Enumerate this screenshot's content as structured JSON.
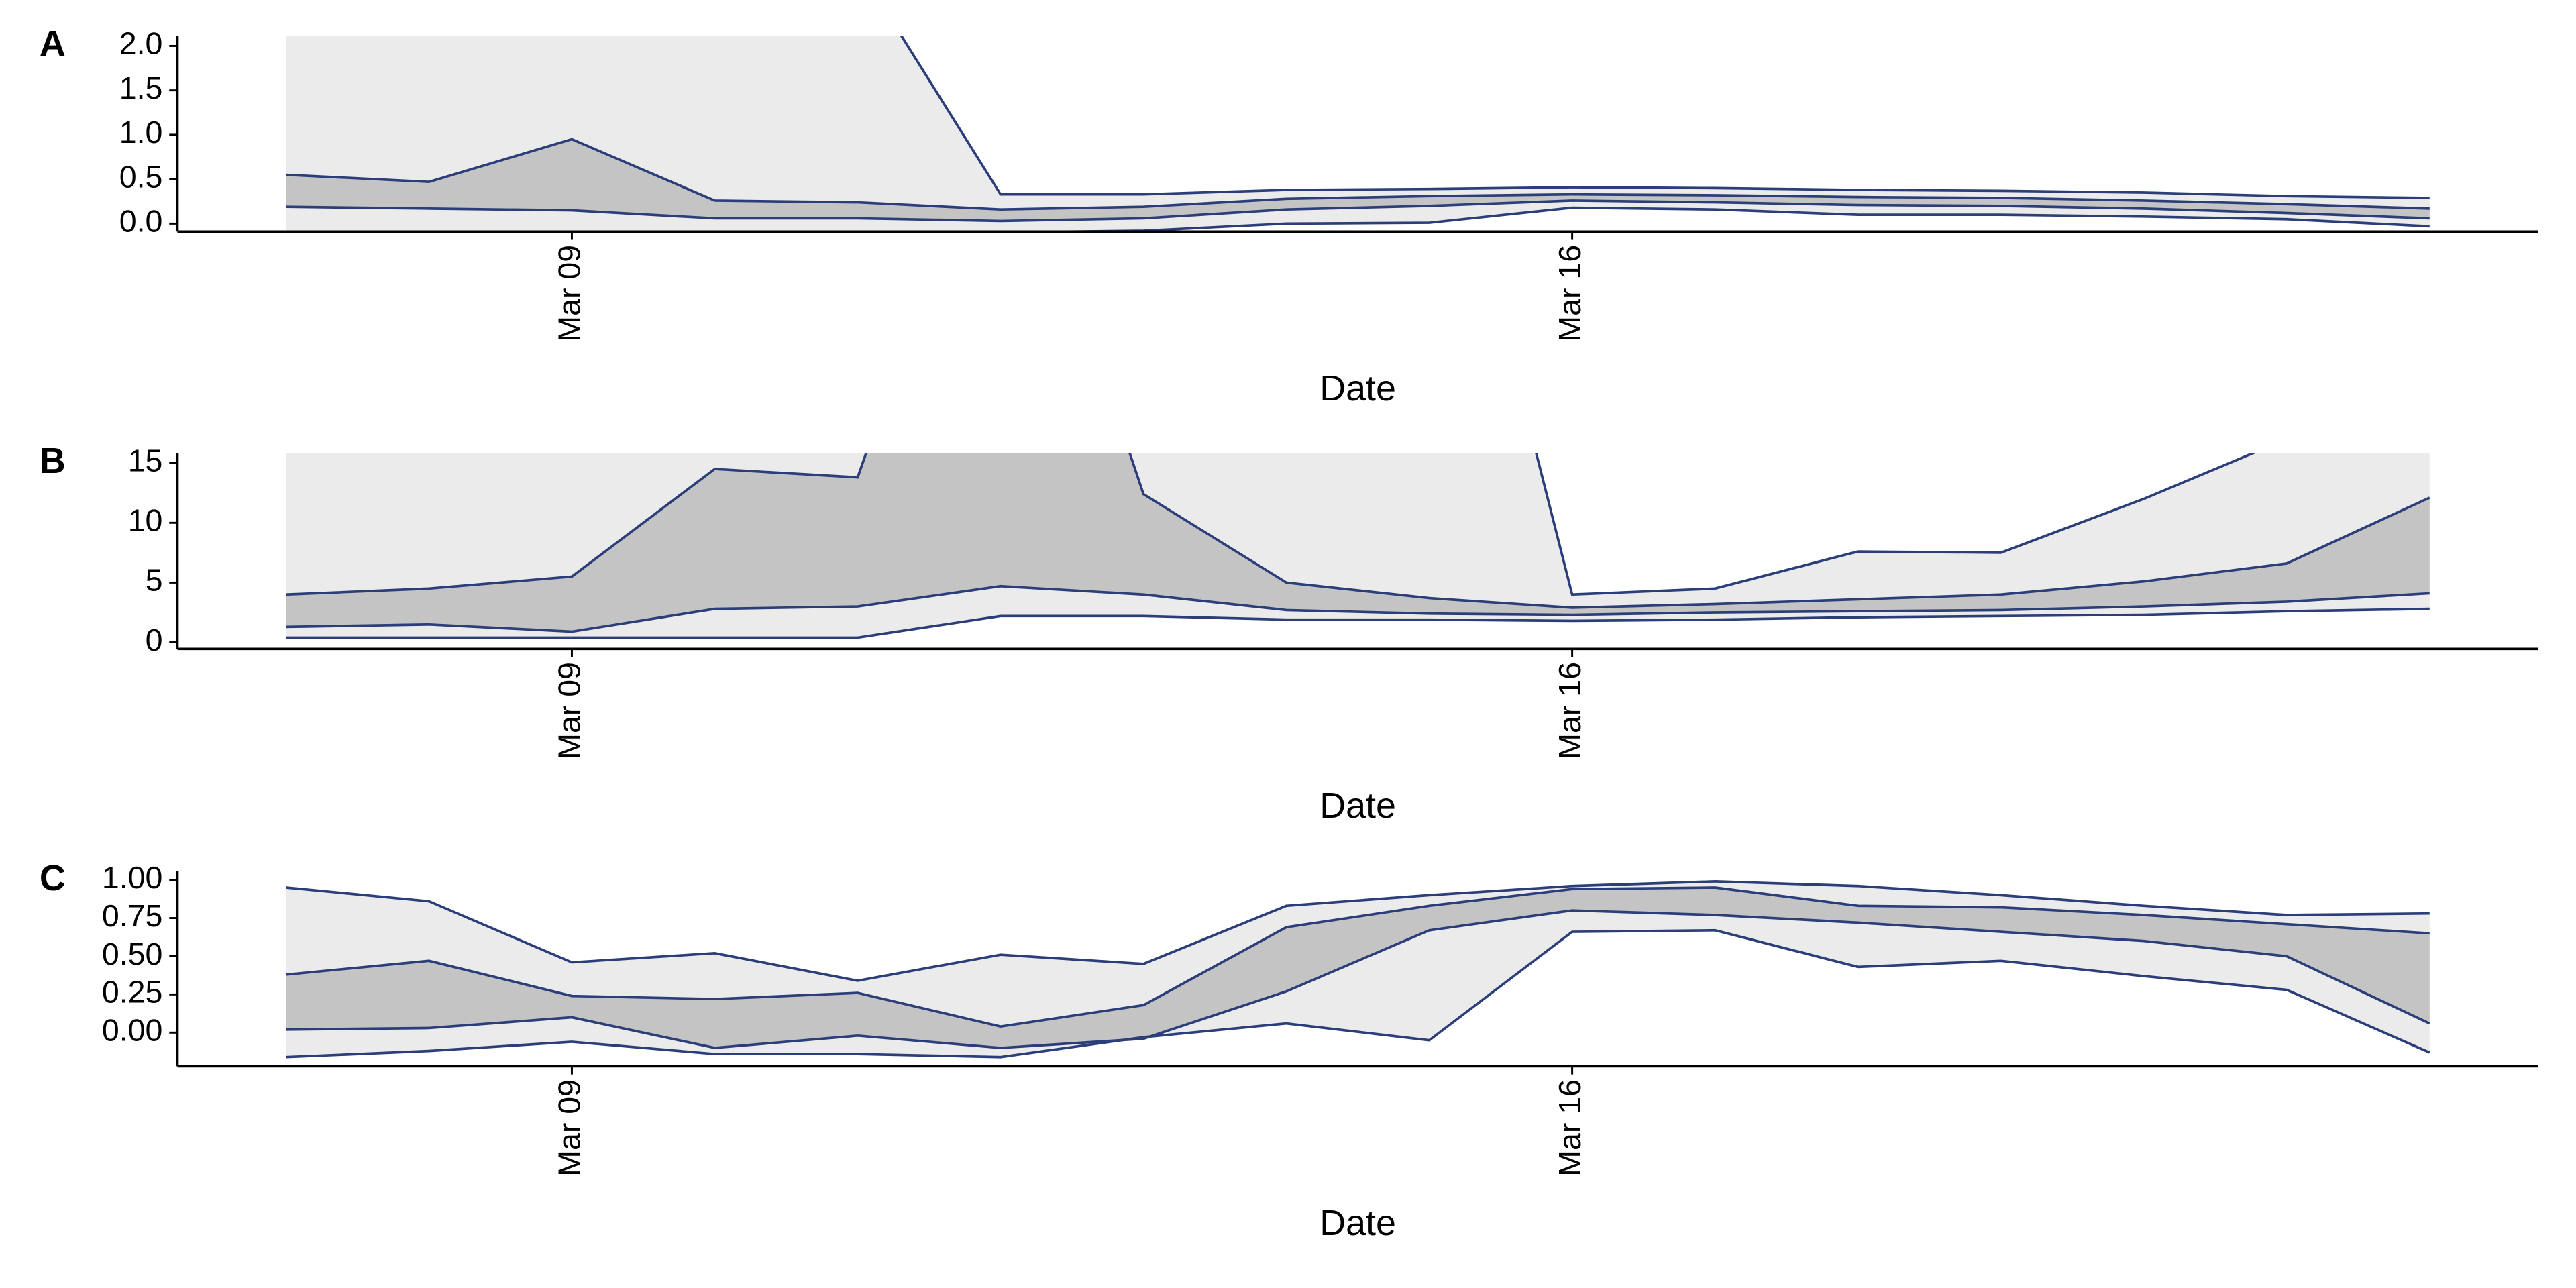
{
  "chart_data": [
    {
      "type": "ribbon",
      "tag": "A",
      "xlabel": "Date",
      "x": [
        7,
        8,
        9,
        10,
        11,
        12,
        13,
        14,
        15,
        16,
        17,
        18,
        19,
        20,
        21,
        22
      ],
      "xlim": [
        6.24,
        22.76
      ],
      "xticks": [
        {
          "value": 9,
          "label": "Mar 09"
        },
        {
          "value": 16,
          "label": "Mar 16"
        }
      ],
      "ylim": [
        -0.09,
        2.11
      ],
      "yticks": [
        {
          "value": 0,
          "label": "0.0"
        },
        0.5,
        {
          "value": 1,
          "label": "1.0"
        },
        1.5,
        {
          "value": 2,
          "label": "2.0"
        }
      ],
      "line_color": "#2c3e7a",
      "bands": [
        {
          "fill": "#ebebeb",
          "lower": [
            -0.1,
            -0.1,
            -0.1,
            -0.1,
            -0.1,
            -0.1,
            -0.08,
            0.0,
            0.01,
            0.18,
            0.16,
            0.1,
            0.1,
            0.08,
            0.05,
            -0.03
          ],
          "upper": [
            3.5,
            3.5,
            3.4,
            3.2,
            2.9,
            0.33,
            0.33,
            0.38,
            0.39,
            0.41,
            0.4,
            0.38,
            0.37,
            0.35,
            0.31,
            0.29
          ]
        },
        {
          "fill": "#c4c4c4",
          "lower": [
            0.19,
            0.17,
            0.15,
            0.06,
            0.06,
            0.03,
            0.06,
            0.16,
            0.2,
            0.26,
            0.24,
            0.21,
            0.2,
            0.17,
            0.12,
            0.06
          ],
          "upper": [
            0.55,
            0.47,
            0.95,
            0.26,
            0.24,
            0.16,
            0.19,
            0.28,
            0.31,
            0.33,
            0.32,
            0.3,
            0.29,
            0.26,
            0.22,
            0.17
          ]
        }
      ]
    },
    {
      "type": "ribbon",
      "tag": "B",
      "xlabel": "Date",
      "x": [
        7,
        8,
        9,
        10,
        11,
        12,
        13,
        14,
        15,
        16,
        17,
        18,
        19,
        20,
        21,
        22
      ],
      "xlim": [
        6.24,
        22.76
      ],
      "xticks": [
        {
          "value": 9,
          "label": "Mar 09"
        },
        {
          "value": 16,
          "label": "Mar 16"
        }
      ],
      "ylim": [
        -0.55,
        15.8
      ],
      "yticks": [
        0,
        5,
        10,
        15
      ],
      "line_color": "#2c3e7a",
      "bands": [
        {
          "fill": "#ebebeb",
          "lower": [
            0.4,
            0.4,
            0.4,
            0.4,
            0.4,
            2.2,
            2.2,
            1.9,
            1.9,
            1.8,
            1.9,
            2.1,
            2.2,
            2.3,
            2.6,
            2.8
          ],
          "upper": [
            30,
            30,
            30,
            30,
            30,
            30,
            30,
            30,
            51,
            4.0,
            4.5,
            7.6,
            7.5,
            12,
            17,
            20
          ]
        },
        {
          "fill": "#c4c4c4",
          "lower": [
            1.3,
            1.5,
            0.9,
            2.8,
            3.0,
            4.7,
            4.0,
            2.7,
            2.4,
            2.3,
            2.5,
            2.6,
            2.7,
            3.0,
            3.4,
            4.1
          ],
          "upper": [
            4.0,
            4.5,
            5.5,
            14.5,
            13.8,
            48,
            12.4,
            5.0,
            3.7,
            2.9,
            3.2,
            3.6,
            4.0,
            5.1,
            6.6,
            12.1
          ]
        }
      ]
    },
    {
      "type": "ribbon",
      "tag": "C",
      "xlabel": "Date",
      "x": [
        7,
        8,
        9,
        10,
        11,
        12,
        13,
        14,
        15,
        16,
        17,
        18,
        19,
        20,
        21,
        22
      ],
      "xlim": [
        6.24,
        22.76
      ],
      "xticks": [
        {
          "value": 9,
          "label": "Mar 09"
        },
        {
          "value": 16,
          "label": "Mar 16"
        }
      ],
      "ylim": [
        -0.22,
        1.06
      ],
      "yticks": [
        {
          "value": 0,
          "label": "0.00"
        },
        0.25,
        {
          "value": 0.5,
          "label": "0.50"
        },
        0.75,
        {
          "value": 1,
          "label": "1.00"
        }
      ],
      "line_color": "#2c3e7a",
      "bands": [
        {
          "fill": "#ebebeb",
          "lower": [
            -0.16,
            -0.12,
            -0.06,
            -0.14,
            -0.14,
            -0.16,
            -0.03,
            0.06,
            -0.05,
            0.66,
            0.67,
            0.43,
            0.47,
            0.37,
            0.28,
            -0.13
          ],
          "upper": [
            0.95,
            0.86,
            0.46,
            0.52,
            0.34,
            0.51,
            0.45,
            0.83,
            0.9,
            0.96,
            0.99,
            0.96,
            0.9,
            0.83,
            0.77,
            0.78
          ]
        },
        {
          "fill": "#c4c4c4",
          "lower": [
            0.02,
            0.03,
            0.1,
            -0.1,
            -0.02,
            -0.1,
            -0.04,
            0.27,
            0.67,
            0.8,
            0.77,
            0.72,
            0.66,
            0.6,
            0.5,
            0.06
          ],
          "upper": [
            0.38,
            0.47,
            0.24,
            0.22,
            0.26,
            0.04,
            0.18,
            0.69,
            0.83,
            0.94,
            0.95,
            0.83,
            0.82,
            0.77,
            0.71,
            0.65
          ]
        }
      ]
    }
  ]
}
